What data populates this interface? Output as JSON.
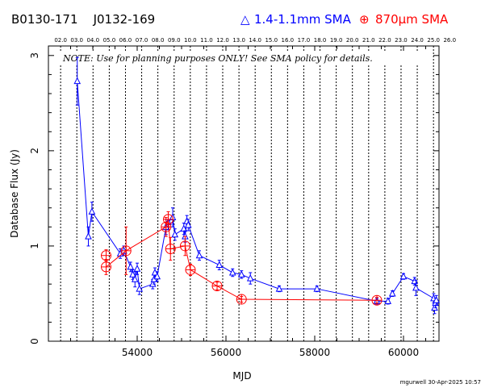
{
  "header": {
    "source_names": "B0130-171    J0132-169",
    "legend_blue_symbol": "△",
    "legend_blue_label": "1.4-1.1mm SMA",
    "legend_red_symbol": "⊕",
    "legend_red_label": "870μm SMA"
  },
  "note": "NOTE: Use for planning purposes ONLY!  See SMA policy for details.",
  "footer": "mgurwell 30-Apr-2025 10:57",
  "colors": {
    "blue": "#0000ff",
    "red": "#ff0000",
    "black": "#000000"
  },
  "chart_data": {
    "type": "scatter",
    "xlabel": "MJD",
    "ylabel": "Database Flux (Jy)",
    "xlim": [
      52000,
      60800
    ],
    "ylim": [
      0,
      3.1
    ],
    "x_ticks": [
      54000,
      56000,
      58000,
      60000
    ],
    "y_ticks": [
      0,
      1,
      2,
      3
    ],
    "top_axis": {
      "labels": [
        "02.0",
        "03.0",
        "04.0",
        "05.0",
        "06.0",
        "07.0",
        "08.0",
        "09.0",
        "10.0",
        "11.0",
        "12.0",
        "13.0",
        "14.0",
        "15.0",
        "16.0",
        "17.0",
        "18.0",
        "19.0",
        "20.0",
        "21.0",
        "22.0",
        "23.0",
        "24.0",
        "25.0",
        "26.0"
      ],
      "mjd": [
        52275,
        52640,
        53005,
        53371,
        53736,
        54101,
        54466,
        54832,
        55197,
        55562,
        55927,
        56293,
        56658,
        57023,
        57388,
        57754,
        58119,
        58484,
        58849,
        59215,
        59580,
        59945,
        60310,
        60676,
        61041
      ]
    },
    "series": [
      {
        "name": "1.4-1.1mm SMA",
        "color": "#0000ff",
        "marker": "triangle",
        "points": [
          {
            "x": 52650,
            "y": 2.73,
            "err": 0.25
          },
          {
            "x": 52900,
            "y": 1.1,
            "err": 0.1
          },
          {
            "x": 52980,
            "y": 1.36,
            "err": 0.1
          },
          {
            "x": 53620,
            "y": 0.92,
            "err": 0.05
          },
          {
            "x": 53700,
            "y": 0.95,
            "err": 0.05
          },
          {
            "x": 53850,
            "y": 0.78,
            "err": 0.05
          },
          {
            "x": 53900,
            "y": 0.7,
            "err": 0.05
          },
          {
            "x": 53950,
            "y": 0.65,
            "err": 0.08
          },
          {
            "x": 54000,
            "y": 0.76,
            "err": 0.06
          },
          {
            "x": 54050,
            "y": 0.55,
            "err": 0.06
          },
          {
            "x": 54350,
            "y": 0.6,
            "err": 0.05
          },
          {
            "x": 54380,
            "y": 0.65,
            "err": 0.05
          },
          {
            "x": 54400,
            "y": 0.72,
            "err": 0.05
          },
          {
            "x": 54450,
            "y": 0.68,
            "err": 0.05
          },
          {
            "x": 54650,
            "y": 1.2,
            "err": 0.08
          },
          {
            "x": 54700,
            "y": 1.25,
            "err": 0.08
          },
          {
            "x": 54800,
            "y": 1.3,
            "err": 0.1
          },
          {
            "x": 54850,
            "y": 1.12,
            "err": 0.06
          },
          {
            "x": 55050,
            "y": 1.18,
            "err": 0.06
          },
          {
            "x": 55080,
            "y": 1.1,
            "err": 0.06
          },
          {
            "x": 55120,
            "y": 1.26,
            "err": 0.06
          },
          {
            "x": 55150,
            "y": 1.22,
            "err": 0.06
          },
          {
            "x": 55400,
            "y": 0.9,
            "err": 0.05
          },
          {
            "x": 55850,
            "y": 0.8,
            "err": 0.05
          },
          {
            "x": 56150,
            "y": 0.72,
            "err": 0.04
          },
          {
            "x": 56350,
            "y": 0.7,
            "err": 0.04
          },
          {
            "x": 56550,
            "y": 0.66,
            "err": 0.06
          },
          {
            "x": 57200,
            "y": 0.55,
            "err": 0.03
          },
          {
            "x": 58050,
            "y": 0.55,
            "err": 0.03
          },
          {
            "x": 59400,
            "y": 0.42,
            "err": 0.03
          },
          {
            "x": 59650,
            "y": 0.42,
            "err": 0.03
          },
          {
            "x": 59750,
            "y": 0.5,
            "err": 0.03
          },
          {
            "x": 60000,
            "y": 0.68,
            "err": 0.03
          },
          {
            "x": 60250,
            "y": 0.63,
            "err": 0.04
          },
          {
            "x": 60280,
            "y": 0.56,
            "err": 0.08
          },
          {
            "x": 60680,
            "y": 0.45,
            "err": 0.05
          },
          {
            "x": 60700,
            "y": 0.35,
            "err": 0.06
          },
          {
            "x": 60720,
            "y": 0.4,
            "err": 0.05
          },
          {
            "x": 60740,
            "y": 0.43,
            "err": 0.05
          }
        ]
      },
      {
        "name": "870μm SMA",
        "color": "#ff0000",
        "marker": "circle-cross",
        "points": [
          {
            "x": 53300,
            "y": 0.9,
            "err": 0.06
          },
          {
            "x": 53300,
            "y": 0.78,
            "err": 0.08
          },
          {
            "x": 53750,
            "y": 0.95,
            "err": 0.25
          },
          {
            "x": 54650,
            "y": 1.2,
            "err": 0.1
          },
          {
            "x": 54700,
            "y": 1.28,
            "err": 0.08
          },
          {
            "x": 54750,
            "y": 0.97,
            "err": 0.12
          },
          {
            "x": 55080,
            "y": 1.0,
            "err": 0.1
          },
          {
            "x": 55200,
            "y": 0.75,
            "err": 0.06
          },
          {
            "x": 55800,
            "y": 0.58,
            "err": 0.04
          },
          {
            "x": 56350,
            "y": 0.44,
            "err": 0.03
          },
          {
            "x": 59400,
            "y": 0.43,
            "err": 0.03
          }
        ]
      }
    ]
  }
}
